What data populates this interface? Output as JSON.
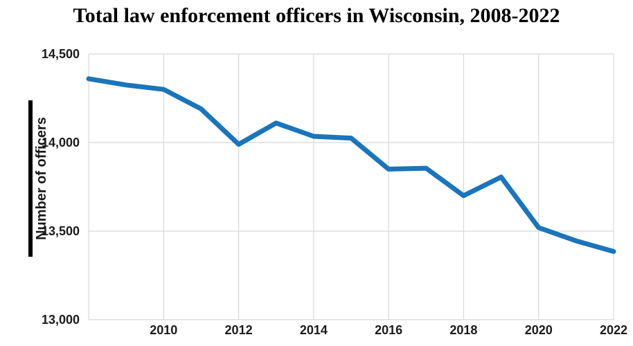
{
  "title": "Total law enforcement officers in Wisconsin, 2008-2022",
  "y_axis": {
    "label": "Number of officers"
  },
  "chart_data": {
    "type": "line",
    "title": "Total law enforcement officers in Wisconsin, 2008-2022",
    "xlabel": "",
    "ylabel": "Number of officers",
    "x": [
      2008,
      2009,
      2010,
      2011,
      2012,
      2013,
      2014,
      2015,
      2016,
      2017,
      2018,
      2019,
      2020,
      2021,
      2022
    ],
    "series": [
      {
        "name": "Total law enforcement officers",
        "values": [
          14360,
          14325,
          14300,
          14190,
          13990,
          14110,
          14035,
          14025,
          13850,
          13855,
          13700,
          13805,
          13520,
          13445,
          13385
        ]
      }
    ],
    "xlim": [
      2008,
      2022
    ],
    "ylim": [
      13000,
      14500
    ],
    "yticks": [
      13000,
      13500,
      14000,
      14500
    ],
    "ytick_labels": [
      "13,000",
      "13,500",
      "14,000",
      "14,500"
    ],
    "xticks": [
      2010,
      2012,
      2014,
      2016,
      2018,
      2020,
      2022
    ],
    "xtick_labels": [
      "2010",
      "2012",
      "2014",
      "2016",
      "2018",
      "2020",
      "2022"
    ],
    "grid": true,
    "legend": "none",
    "colors": {
      "line": "#1a75bb",
      "grid": "#d8d8d8",
      "text": "#1a1a1a",
      "accent_bar": "#000000",
      "background": "#ffffff"
    }
  }
}
